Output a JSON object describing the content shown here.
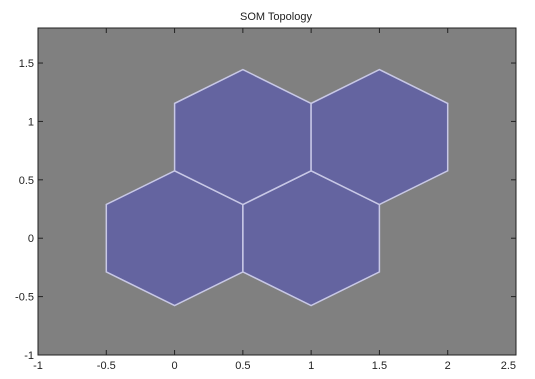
{
  "chart_data": {
    "type": "hexagonal-topology",
    "title": "SOM Topology",
    "xlabel": "",
    "ylabel": "",
    "xlim": [
      -1,
      2.5
    ],
    "ylim": [
      -1,
      1.8
    ],
    "xticks": [
      -1,
      -0.5,
      0,
      0.5,
      1,
      1.5,
      2,
      2.5
    ],
    "xtick_labels": [
      "-1",
      "-0.5",
      "0",
      "0.5",
      "1",
      "1.5",
      "2",
      "2.5"
    ],
    "yticks": [
      -1,
      -0.5,
      0,
      0.5,
      1,
      1.5
    ],
    "ytick_labels": [
      "-1",
      "-0.5",
      "0",
      "0.5",
      "1",
      "1.5"
    ],
    "grid": false,
    "hex_radius": 0.5774,
    "neurons": [
      {
        "x": 0,
        "y": 0
      },
      {
        "x": 1,
        "y": 0
      },
      {
        "x": 0.5,
        "y": 0.866
      },
      {
        "x": 1.5,
        "y": 0.866
      }
    ],
    "colors": {
      "axes_background": "#808080",
      "hex_fill": "#6464a0",
      "hex_edge": "#c8c8e6",
      "figure_background": "#ffffff",
      "axis_line": "#222222"
    }
  }
}
